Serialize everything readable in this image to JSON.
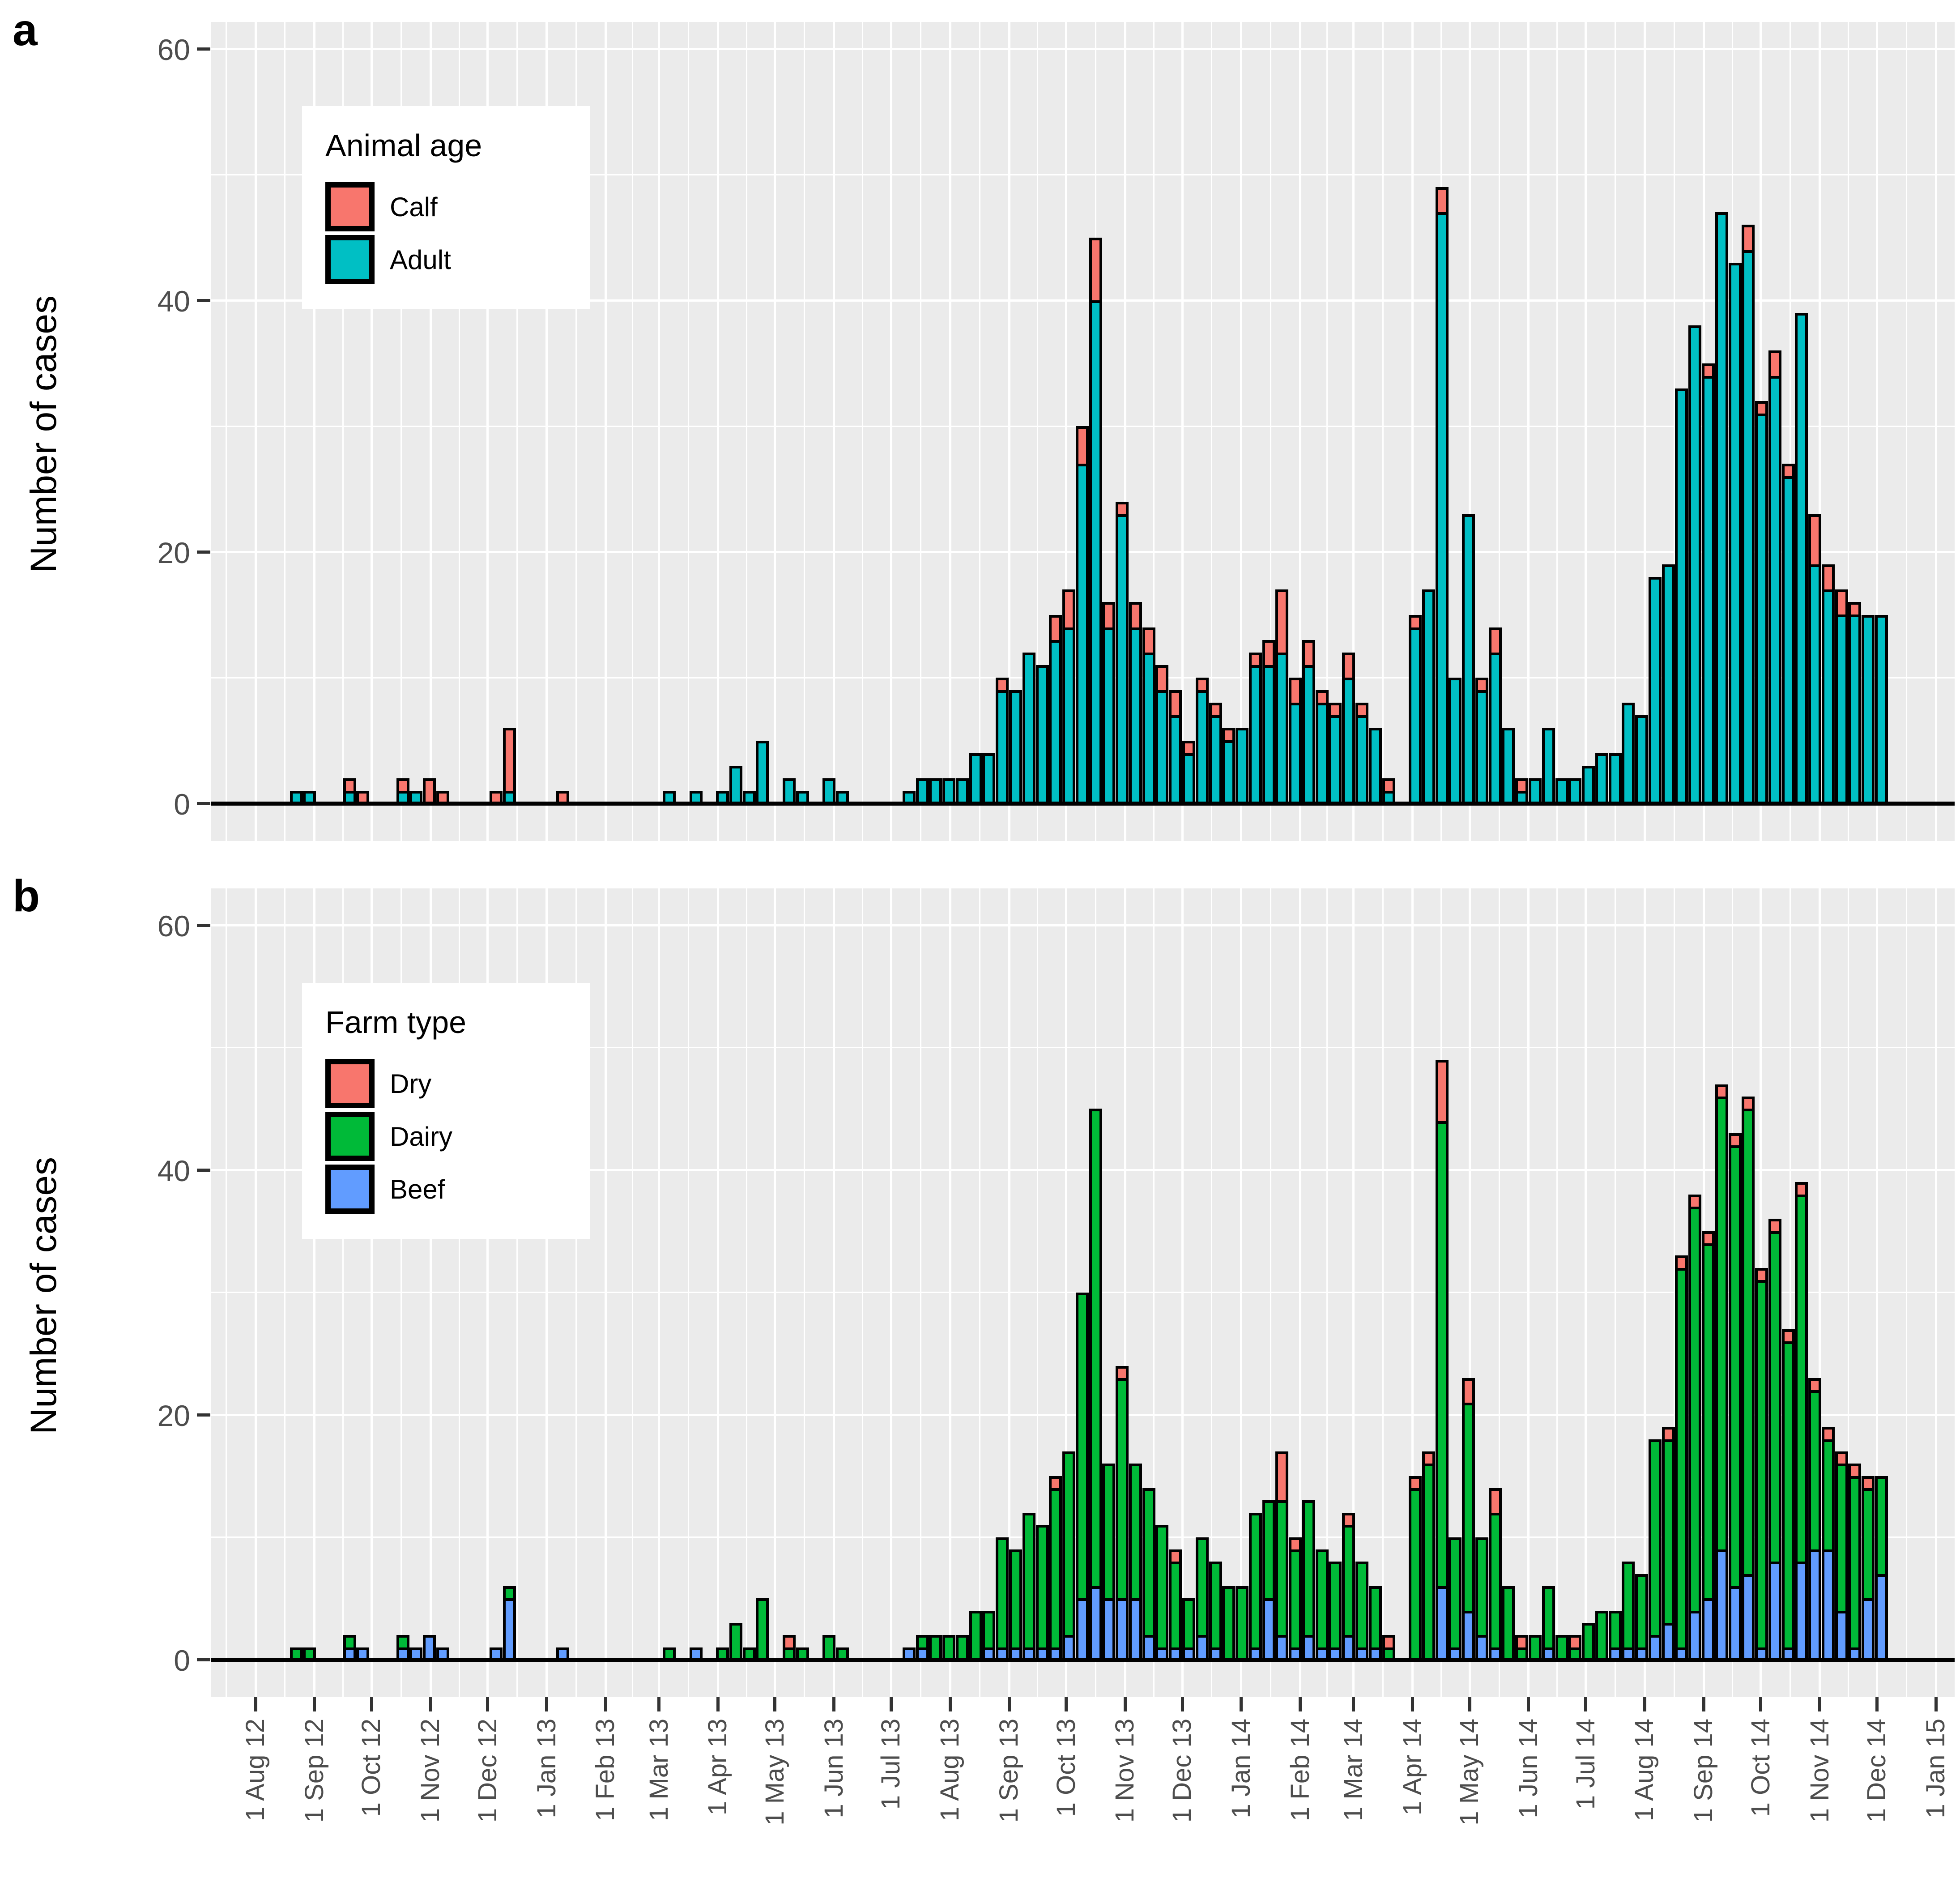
{
  "figure": {
    "panel_a_letter": "a",
    "panel_b_letter": "b",
    "y_axis_title": "Number of cases",
    "y_tick_labels": [
      "0",
      "20",
      "40",
      "60"
    ],
    "x_tick_labels": [
      "1 Aug 12",
      "1 Sep 12",
      "1 Oct 12",
      "1 Nov 12",
      "1 Dec 12",
      "1 Jan 13",
      "1 Feb 13",
      "1 Mar 13",
      "1 Apr 13",
      "1 May 13",
      "1 Jun 13",
      "1 Jul 13",
      "1 Aug 13",
      "1 Sep 13",
      "1 Oct 13",
      "1 Nov 13",
      "1 Dec 13",
      "1 Jan 14",
      "1 Feb 14",
      "1 Mar 14",
      "1 Apr 14",
      "1 May 14",
      "1 Jun 14",
      "1 Jul 14",
      "1 Aug 14",
      "1 Sep 14",
      "1 Oct 14",
      "1 Nov 14",
      "1 Dec 14",
      "1 Jan 15"
    ]
  },
  "legend_a": {
    "title": "Animal age",
    "items": [
      {
        "label": "Calf",
        "color": "#F8766D"
      },
      {
        "label": "Adult",
        "color": "#00BFC4"
      }
    ]
  },
  "legend_b": {
    "title": "Farm type",
    "items": [
      {
        "label": "Dry",
        "color": "#F8766D"
      },
      {
        "label": "Dairy",
        "color": "#00BA38"
      },
      {
        "label": "Beef",
        "color": "#619CFF"
      }
    ]
  },
  "chart_data": {
    "type": "bar",
    "subtype": "stacked-weekly-epidemic-curve",
    "title": "",
    "xlabel": "",
    "ylabel": "Number of cases",
    "ylim": [
      0,
      60
    ],
    "y_major_ticks": [
      0,
      20,
      40,
      60
    ],
    "y_minor_gridlines": [
      10,
      30,
      50
    ],
    "x_range": [
      "2012-08-01",
      "2015-01-01"
    ],
    "grid": "white-on-grey",
    "legend_position": "inside-top-left",
    "panel_a": {
      "stack_order_top_to_bottom": [
        "calf",
        "adult"
      ],
      "colors": {
        "calf": "#F8766D",
        "adult": "#00BFC4"
      }
    },
    "panel_b": {
      "stack_order_top_to_bottom": [
        "dry",
        "dairy",
        "beef"
      ],
      "colors": {
        "dry": "#F8766D",
        "dairy": "#00BA38",
        "beef": "#619CFF"
      }
    },
    "columns": [
      "week_start",
      "adult",
      "calf",
      "beef",
      "dairy",
      "dry"
    ],
    "weeks": [
      [
        "2012-08-19",
        1,
        0,
        0,
        1,
        0
      ],
      [
        "2012-08-26",
        1,
        0,
        0,
        1,
        0
      ],
      [
        "2012-09-16",
        1,
        1,
        1,
        1,
        0
      ],
      [
        "2012-09-23",
        0,
        1,
        1,
        0,
        0
      ],
      [
        "2012-10-14",
        1,
        1,
        1,
        1,
        0
      ],
      [
        "2012-10-21",
        1,
        0,
        1,
        0,
        0
      ],
      [
        "2012-10-28",
        0,
        2,
        2,
        0,
        0
      ],
      [
        "2012-11-04",
        0,
        1,
        1,
        0,
        0
      ],
      [
        "2012-12-02",
        0,
        1,
        1,
        0,
        0
      ],
      [
        "2012-12-09",
        1,
        5,
        5,
        1,
        0
      ],
      [
        "2013-01-06",
        0,
        1,
        1,
        0,
        0
      ],
      [
        "2013-03-03",
        1,
        0,
        0,
        1,
        0
      ],
      [
        "2013-03-17",
        1,
        0,
        1,
        0,
        0
      ],
      [
        "2013-03-31",
        1,
        0,
        0,
        1,
        0
      ],
      [
        "2013-04-07",
        3,
        0,
        0,
        3,
        0
      ],
      [
        "2013-04-14",
        1,
        0,
        0,
        1,
        0
      ],
      [
        "2013-04-21",
        5,
        0,
        0,
        5,
        0
      ],
      [
        "2013-05-05",
        2,
        0,
        0,
        1,
        1
      ],
      [
        "2013-05-12",
        1,
        0,
        0,
        1,
        0
      ],
      [
        "2013-05-26",
        2,
        0,
        0,
        2,
        0
      ],
      [
        "2013-06-02",
        1,
        0,
        0,
        1,
        0
      ],
      [
        "2013-07-07",
        1,
        0,
        1,
        0,
        0
      ],
      [
        "2013-07-14",
        2,
        0,
        1,
        1,
        0
      ],
      [
        "2013-07-21",
        2,
        0,
        0,
        2,
        0
      ],
      [
        "2013-07-28",
        2,
        0,
        0,
        2,
        0
      ],
      [
        "2013-08-04",
        2,
        0,
        0,
        2,
        0
      ],
      [
        "2013-08-11",
        4,
        0,
        0,
        4,
        0
      ],
      [
        "2013-08-18",
        4,
        0,
        1,
        3,
        0
      ],
      [
        "2013-08-25",
        9,
        1,
        1,
        9,
        0
      ],
      [
        "2013-09-01",
        9,
        0,
        1,
        8,
        0
      ],
      [
        "2013-09-08",
        12,
        0,
        1,
        11,
        0
      ],
      [
        "2013-09-15",
        11,
        0,
        1,
        10,
        0
      ],
      [
        "2013-09-22",
        13,
        2,
        1,
        13,
        1
      ],
      [
        "2013-09-29",
        14,
        3,
        2,
        15,
        0
      ],
      [
        "2013-10-06",
        27,
        3,
        5,
        25,
        0
      ],
      [
        "2013-10-13",
        40,
        5,
        6,
        39,
        0
      ],
      [
        "2013-10-20",
        14,
        2,
        5,
        11,
        0
      ],
      [
        "2013-10-27",
        23,
        1,
        5,
        18,
        1
      ],
      [
        "2013-11-03",
        14,
        2,
        5,
        11,
        0
      ],
      [
        "2013-11-10",
        12,
        2,
        2,
        12,
        0
      ],
      [
        "2013-11-17",
        9,
        2,
        1,
        10,
        0
      ],
      [
        "2013-11-24",
        7,
        2,
        1,
        7,
        1
      ],
      [
        "2013-12-01",
        4,
        1,
        1,
        4,
        0
      ],
      [
        "2013-12-08",
        9,
        1,
        2,
        8,
        0
      ],
      [
        "2013-12-15",
        7,
        1,
        1,
        7,
        0
      ],
      [
        "2013-12-22",
        5,
        1,
        0,
        6,
        0
      ],
      [
        "2013-12-29",
        6,
        0,
        0,
        6,
        0
      ],
      [
        "2014-01-05",
        11,
        1,
        1,
        11,
        0
      ],
      [
        "2014-01-12",
        11,
        2,
        5,
        8,
        0
      ],
      [
        "2014-01-19",
        12,
        5,
        2,
        11,
        4
      ],
      [
        "2014-01-26",
        8,
        2,
        1,
        8,
        1
      ],
      [
        "2014-02-02",
        11,
        2,
        2,
        11,
        0
      ],
      [
        "2014-02-09",
        8,
        1,
        1,
        8,
        0
      ],
      [
        "2014-02-16",
        7,
        1,
        1,
        7,
        0
      ],
      [
        "2014-02-23",
        10,
        2,
        2,
        9,
        1
      ],
      [
        "2014-03-02",
        7,
        1,
        1,
        7,
        0
      ],
      [
        "2014-03-09",
        6,
        0,
        1,
        5,
        0
      ],
      [
        "2014-03-16",
        1,
        1,
        0,
        1,
        1
      ],
      [
        "2014-03-30",
        14,
        1,
        0,
        14,
        1
      ],
      [
        "2014-04-06",
        17,
        0,
        0,
        16,
        1
      ],
      [
        "2014-04-13",
        47,
        2,
        6,
        38,
        5
      ],
      [
        "2014-04-20",
        10,
        0,
        1,
        9,
        0
      ],
      [
        "2014-04-27",
        23,
        0,
        4,
        17,
        2
      ],
      [
        "2014-05-04",
        9,
        1,
        2,
        8,
        0
      ],
      [
        "2014-05-11",
        12,
        2,
        1,
        11,
        2
      ],
      [
        "2014-05-18",
        6,
        0,
        0,
        6,
        0
      ],
      [
        "2014-05-25",
        1,
        1,
        0,
        1,
        1
      ],
      [
        "2014-06-01",
        2,
        0,
        0,
        2,
        0
      ],
      [
        "2014-06-08",
        6,
        0,
        1,
        5,
        0
      ],
      [
        "2014-06-15",
        2,
        0,
        0,
        2,
        0
      ],
      [
        "2014-06-22",
        2,
        0,
        0,
        1,
        1
      ],
      [
        "2014-06-29",
        3,
        0,
        0,
        3,
        0
      ],
      [
        "2014-07-06",
        4,
        0,
        0,
        4,
        0
      ],
      [
        "2014-07-13",
        4,
        0,
        1,
        3,
        0
      ],
      [
        "2014-07-20",
        8,
        0,
        1,
        7,
        0
      ],
      [
        "2014-07-27",
        7,
        0,
        1,
        6,
        0
      ],
      [
        "2014-08-03",
        18,
        0,
        2,
        16,
        0
      ],
      [
        "2014-08-10",
        19,
        0,
        3,
        15,
        1
      ],
      [
        "2014-08-17",
        33,
        0,
        1,
        31,
        1
      ],
      [
        "2014-08-24",
        38,
        0,
        4,
        33,
        1
      ],
      [
        "2014-08-31",
        34,
        1,
        5,
        29,
        1
      ],
      [
        "2014-09-07",
        47,
        0,
        9,
        37,
        1
      ],
      [
        "2014-09-14",
        43,
        0,
        6,
        36,
        1
      ],
      [
        "2014-09-21",
        44,
        2,
        7,
        38,
        1
      ],
      [
        "2014-09-28",
        31,
        1,
        1,
        30,
        1
      ],
      [
        "2014-10-05",
        34,
        2,
        8,
        27,
        1
      ],
      [
        "2014-10-12",
        26,
        1,
        1,
        25,
        1
      ],
      [
        "2014-10-19",
        39,
        0,
        8,
        30,
        1
      ],
      [
        "2014-10-26",
        19,
        4,
        9,
        13,
        1
      ],
      [
        "2014-11-02",
        17,
        2,
        9,
        9,
        1
      ],
      [
        "2014-11-09",
        15,
        2,
        4,
        12,
        1
      ],
      [
        "2014-11-16",
        15,
        1,
        1,
        14,
        1
      ],
      [
        "2014-11-23",
        15,
        0,
        5,
        9,
        1
      ],
      [
        "2014-11-30",
        15,
        0,
        7,
        8,
        0
      ]
    ]
  }
}
